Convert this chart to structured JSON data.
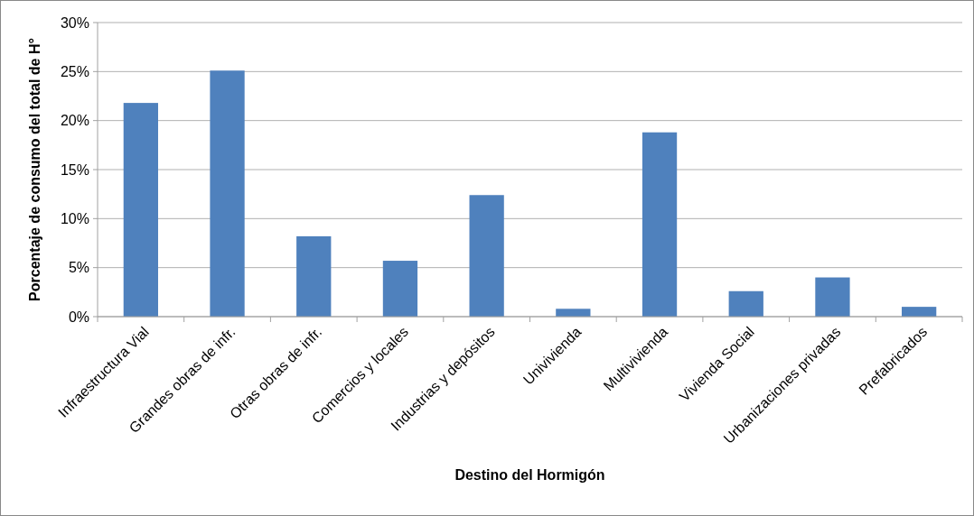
{
  "chart_data": {
    "type": "bar",
    "xlabel": "Destino del Hormigón",
    "ylabel": "Porcentaje de consumo del total de H°",
    "categories": [
      "Infraestructura Vial",
      "Grandes obras de infr.",
      "Otras obras de infr.",
      "Comercios y locales",
      "Industrias y depósitos",
      "Univivienda",
      "Multivivienda",
      "Vivienda Social",
      "Urbanizaciones privadas",
      "Prefabricados"
    ],
    "values": [
      21.8,
      25.1,
      8.2,
      5.7,
      12.4,
      0.8,
      18.8,
      2.6,
      4.0,
      1.0
    ],
    "color": "#4f81bd",
    "ylim": [
      0,
      30
    ],
    "yticks": [
      {
        "value": 0,
        "label": "0%"
      },
      {
        "value": 5,
        "label": "5%"
      },
      {
        "value": 10,
        "label": "10%"
      },
      {
        "value": 15,
        "label": "15%"
      },
      {
        "value": 20,
        "label": "20%"
      },
      {
        "value": 25,
        "label": "25%"
      },
      {
        "value": 30,
        "label": "30%"
      }
    ],
    "grid": "y"
  }
}
